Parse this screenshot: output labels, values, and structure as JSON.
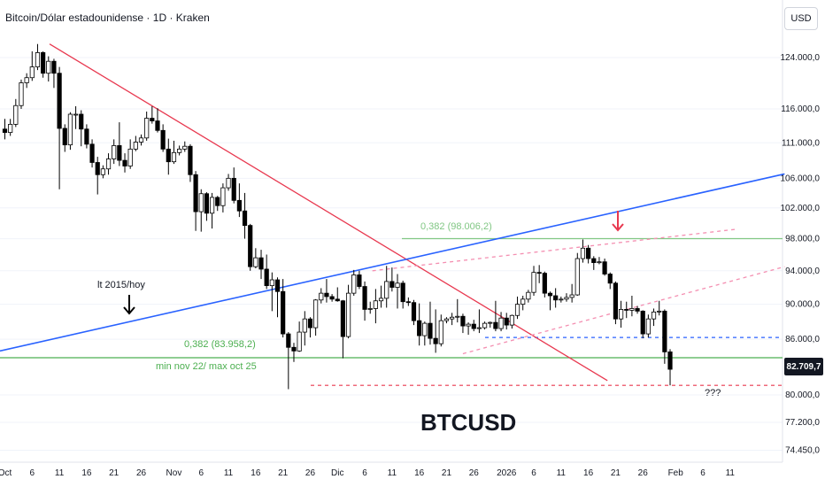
{
  "header": {
    "title": "Bitcoin/Dólar estadounidense · 1D · Kraken",
    "currency_button": "USD",
    "last_price": "82.709,7"
  },
  "colors": {
    "up": "#ffffff",
    "down": "#000000",
    "outline": "#000000",
    "red_line": "#e8384f",
    "blue_line": "#2962ff",
    "green_line": "#4caf50",
    "green_text": "#81c784",
    "pink_dash": "#f48fb1"
  },
  "annotations": {
    "fib_upper": "0,382 (98.006,2)",
    "fib_lower": "0,382 (83.958,2)",
    "support_label": "min nov 22/ max oct 25",
    "trend_label": "lt 2015/hoy",
    "question": "???",
    "symbol": "BTCUSD"
  },
  "chart_data": {
    "type": "candlestick",
    "title": "Bitcoin/Dólar estadounidense · 1D · Kraken",
    "y_axis": {
      "scale": "log",
      "range": [
        72500,
        131000
      ],
      "ticks": [
        "124.000,0",
        "116.000,0",
        "111.000,0",
        "106.000,0",
        "102.000,0",
        "98.000,0",
        "94.000,0",
        "90.000,0",
        "86.000,0",
        "82.709,7",
        "80.000,0",
        "77.200,0",
        "74.450,0"
      ],
      "tick_values": [
        124000,
        116000,
        111000,
        106000,
        102000,
        98000,
        94000,
        90000,
        86000,
        82709.7,
        80000,
        77200,
        74450
      ]
    },
    "x_axis": {
      "ticks": [
        "Oct",
        "6",
        "11",
        "16",
        "21",
        "26",
        "Nov",
        "6",
        "11",
        "16",
        "21",
        "26",
        "Dic",
        "6",
        "11",
        "16",
        "21",
        "26",
        "2026",
        "6",
        "11",
        "16",
        "21",
        "26",
        "Feb",
        "6",
        "11"
      ],
      "tick_bars": [
        0,
        5,
        10,
        15,
        20,
        25,
        31,
        36,
        41,
        46,
        51,
        56,
        61,
        66,
        71,
        76,
        81,
        86,
        92,
        97,
        102,
        107,
        112,
        117,
        123,
        128,
        133
      ]
    },
    "candles": [
      {
        "d": "2025-09-30",
        "o": 113000,
        "h": 114500,
        "l": 111500,
        "c": 112500
      },
      {
        "d": "2025-10-01",
        "o": 112500,
        "h": 114500,
        "l": 112000,
        "c": 113700
      },
      {
        "d": "2025-10-02",
        "o": 113700,
        "h": 117500,
        "l": 113300,
        "c": 116500
      },
      {
        "d": "2025-10-03",
        "o": 116500,
        "h": 120500,
        "l": 116000,
        "c": 120000
      },
      {
        "d": "2025-10-04",
        "o": 120000,
        "h": 121500,
        "l": 119200,
        "c": 120800
      },
      {
        "d": "2025-10-05",
        "o": 120800,
        "h": 125000,
        "l": 120300,
        "c": 122500
      },
      {
        "d": "2025-10-06",
        "o": 122500,
        "h": 126200,
        "l": 122000,
        "c": 124800
      },
      {
        "d": "2025-10-07",
        "o": 124800,
        "h": 125000,
        "l": 120800,
        "c": 121500
      },
      {
        "d": "2025-10-08",
        "o": 121500,
        "h": 124200,
        "l": 120200,
        "c": 123400
      },
      {
        "d": "2025-10-09",
        "o": 123400,
        "h": 123800,
        "l": 119200,
        "c": 121500
      },
      {
        "d": "2025-10-10",
        "o": 121500,
        "h": 122500,
        "l": 104500,
        "c": 113100
      },
      {
        "d": "2025-10-11",
        "o": 113100,
        "h": 113700,
        "l": 109700,
        "c": 110700
      },
      {
        "d": "2025-10-12",
        "o": 110700,
        "h": 115500,
        "l": 110000,
        "c": 115200
      },
      {
        "d": "2025-10-13",
        "o": 115200,
        "h": 116400,
        "l": 113000,
        "c": 115200
      },
      {
        "d": "2025-10-14",
        "o": 115200,
        "h": 115800,
        "l": 110500,
        "c": 113000
      },
      {
        "d": "2025-10-15",
        "o": 113000,
        "h": 113700,
        "l": 110200,
        "c": 110800
      },
      {
        "d": "2025-10-16",
        "o": 110800,
        "h": 111500,
        "l": 107500,
        "c": 108200
      },
      {
        "d": "2025-10-17",
        "o": 108200,
        "h": 109000,
        "l": 103800,
        "c": 106500
      },
      {
        "d": "2025-10-18",
        "o": 106500,
        "h": 107800,
        "l": 106000,
        "c": 107300
      },
      {
        "d": "2025-10-19",
        "o": 107300,
        "h": 109500,
        "l": 106500,
        "c": 108700
      },
      {
        "d": "2025-10-20",
        "o": 108700,
        "h": 111500,
        "l": 108000,
        "c": 110600
      },
      {
        "d": "2025-10-21",
        "o": 110600,
        "h": 114000,
        "l": 107700,
        "c": 108500
      },
      {
        "d": "2025-10-22",
        "o": 108500,
        "h": 109500,
        "l": 106800,
        "c": 107700
      },
      {
        "d": "2025-10-23",
        "o": 107700,
        "h": 111500,
        "l": 107300,
        "c": 110100
      },
      {
        "d": "2025-10-24",
        "o": 110100,
        "h": 112000,
        "l": 109800,
        "c": 111100
      },
      {
        "d": "2025-10-25",
        "o": 111100,
        "h": 112200,
        "l": 110600,
        "c": 111700
      },
      {
        "d": "2025-10-26",
        "o": 111700,
        "h": 115600,
        "l": 111300,
        "c": 114600
      },
      {
        "d": "2025-10-27",
        "o": 114600,
        "h": 116400,
        "l": 113800,
        "c": 114200
      },
      {
        "d": "2025-10-28",
        "o": 114200,
        "h": 116100,
        "l": 112500,
        "c": 112800
      },
      {
        "d": "2025-10-29",
        "o": 112800,
        "h": 113700,
        "l": 109700,
        "c": 110100
      },
      {
        "d": "2025-10-30",
        "o": 110100,
        "h": 111600,
        "l": 106500,
        "c": 108300
      },
      {
        "d": "2025-10-31",
        "o": 108300,
        "h": 111300,
        "l": 108000,
        "c": 109600
      },
      {
        "d": "2025-11-01",
        "o": 109600,
        "h": 110600,
        "l": 109200,
        "c": 110100
      },
      {
        "d": "2025-11-02",
        "o": 110100,
        "h": 111200,
        "l": 109700,
        "c": 110500
      },
      {
        "d": "2025-11-03",
        "o": 110500,
        "h": 110800,
        "l": 105500,
        "c": 106500
      },
      {
        "d": "2025-11-04",
        "o": 106500,
        "h": 107000,
        "l": 99000,
        "c": 101500
      },
      {
        "d": "2025-11-05",
        "o": 101500,
        "h": 104500,
        "l": 98900,
        "c": 103900
      },
      {
        "d": "2025-11-06",
        "o": 103900,
        "h": 104100,
        "l": 100300,
        "c": 101300
      },
      {
        "d": "2025-11-07",
        "o": 101300,
        "h": 104000,
        "l": 99300,
        "c": 103400
      },
      {
        "d": "2025-11-08",
        "o": 103400,
        "h": 103600,
        "l": 101600,
        "c": 102300
      },
      {
        "d": "2025-11-09",
        "o": 102300,
        "h": 105300,
        "l": 101400,
        "c": 104700
      },
      {
        "d": "2025-11-10",
        "o": 104700,
        "h": 106600,
        "l": 104300,
        "c": 106000
      },
      {
        "d": "2025-11-11",
        "o": 106000,
        "h": 107500,
        "l": 102600,
        "c": 103000
      },
      {
        "d": "2025-11-12",
        "o": 103000,
        "h": 105300,
        "l": 100800,
        "c": 101600
      },
      {
        "d": "2025-11-13",
        "o": 101600,
        "h": 104000,
        "l": 98000,
        "c": 99700
      },
      {
        "d": "2025-11-14",
        "o": 99700,
        "h": 99900,
        "l": 94000,
        "c": 94500
      },
      {
        "d": "2025-11-15",
        "o": 94500,
        "h": 96800,
        "l": 94300,
        "c": 95600
      },
      {
        "d": "2025-11-16",
        "o": 95600,
        "h": 96600,
        "l": 93000,
        "c": 94200
      },
      {
        "d": "2025-11-17",
        "o": 94200,
        "h": 96000,
        "l": 91800,
        "c": 92200
      },
      {
        "d": "2025-11-18",
        "o": 92200,
        "h": 93800,
        "l": 89200,
        "c": 92900
      },
      {
        "d": "2025-11-19",
        "o": 92900,
        "h": 93200,
        "l": 88500,
        "c": 91500
      },
      {
        "d": "2025-11-20",
        "o": 91500,
        "h": 93000,
        "l": 86200,
        "c": 86600
      },
      {
        "d": "2025-11-21",
        "o": 86600,
        "h": 86800,
        "l": 80600,
        "c": 85100
      },
      {
        "d": "2025-11-22",
        "o": 85100,
        "h": 85600,
        "l": 83500,
        "c": 84700
      },
      {
        "d": "2025-11-23",
        "o": 84700,
        "h": 88000,
        "l": 84600,
        "c": 86800
      },
      {
        "d": "2025-11-24",
        "o": 86800,
        "h": 89200,
        "l": 85300,
        "c": 88300
      },
      {
        "d": "2025-11-25",
        "o": 88300,
        "h": 88500,
        "l": 86200,
        "c": 87300
      },
      {
        "d": "2025-11-26",
        "o": 87300,
        "h": 90600,
        "l": 86400,
        "c": 90500
      },
      {
        "d": "2025-11-27",
        "o": 90500,
        "h": 91900,
        "l": 90100,
        "c": 91300
      },
      {
        "d": "2025-11-28",
        "o": 91300,
        "h": 93000,
        "l": 90200,
        "c": 90900
      },
      {
        "d": "2025-11-29",
        "o": 90900,
        "h": 91200,
        "l": 90300,
        "c": 90600
      },
      {
        "d": "2025-11-30",
        "o": 90600,
        "h": 92000,
        "l": 90300,
        "c": 90400
      },
      {
        "d": "2025-12-01",
        "o": 90400,
        "h": 90500,
        "l": 83900,
        "c": 86300
      },
      {
        "d": "2025-12-02",
        "o": 86300,
        "h": 92300,
        "l": 86100,
        "c": 91300
      },
      {
        "d": "2025-12-03",
        "o": 91300,
        "h": 94100,
        "l": 91000,
        "c": 93500
      },
      {
        "d": "2025-12-04",
        "o": 93500,
        "h": 94000,
        "l": 91800,
        "c": 92100
      },
      {
        "d": "2025-12-05",
        "o": 92100,
        "h": 92700,
        "l": 88100,
        "c": 89400
      },
      {
        "d": "2025-12-06",
        "o": 89400,
        "h": 90300,
        "l": 88900,
        "c": 89500
      },
      {
        "d": "2025-12-07",
        "o": 89500,
        "h": 91800,
        "l": 87800,
        "c": 90400
      },
      {
        "d": "2025-12-08",
        "o": 90400,
        "h": 92200,
        "l": 89600,
        "c": 90700
      },
      {
        "d": "2025-12-09",
        "o": 90700,
        "h": 94600,
        "l": 89600,
        "c": 92700
      },
      {
        "d": "2025-12-10",
        "o": 92700,
        "h": 94400,
        "l": 91500,
        "c": 92000
      },
      {
        "d": "2025-12-11",
        "o": 92000,
        "h": 93600,
        "l": 89500,
        "c": 92500
      },
      {
        "d": "2025-12-12",
        "o": 92500,
        "h": 92800,
        "l": 89500,
        "c": 90300
      },
      {
        "d": "2025-12-13",
        "o": 90300,
        "h": 90800,
        "l": 89800,
        "c": 90200
      },
      {
        "d": "2025-12-14",
        "o": 90200,
        "h": 90500,
        "l": 87600,
        "c": 88100
      },
      {
        "d": "2025-12-15",
        "o": 88100,
        "h": 90100,
        "l": 85300,
        "c": 86400
      },
      {
        "d": "2025-12-16",
        "o": 86400,
        "h": 88000,
        "l": 85300,
        "c": 87800
      },
      {
        "d": "2025-12-17",
        "o": 87800,
        "h": 90300,
        "l": 85400,
        "c": 86100
      },
      {
        "d": "2025-12-18",
        "o": 86100,
        "h": 89400,
        "l": 84500,
        "c": 85500
      },
      {
        "d": "2025-12-19",
        "o": 85500,
        "h": 88800,
        "l": 85200,
        "c": 88100
      },
      {
        "d": "2025-12-20",
        "o": 88100,
        "h": 88500,
        "l": 87800,
        "c": 88300
      },
      {
        "d": "2025-12-21",
        "o": 88300,
        "h": 89000,
        "l": 87600,
        "c": 88500
      },
      {
        "d": "2025-12-22",
        "o": 88500,
        "h": 90600,
        "l": 87900,
        "c": 88600
      },
      {
        "d": "2025-12-23",
        "o": 88600,
        "h": 88900,
        "l": 86700,
        "c": 87500
      },
      {
        "d": "2025-12-24",
        "o": 87500,
        "h": 87900,
        "l": 86500,
        "c": 87700
      },
      {
        "d": "2025-12-25",
        "o": 87700,
        "h": 88200,
        "l": 86900,
        "c": 87200
      },
      {
        "d": "2025-12-26",
        "o": 87200,
        "h": 89400,
        "l": 86700,
        "c": 87300
      },
      {
        "d": "2025-12-27",
        "o": 87300,
        "h": 88000,
        "l": 87100,
        "c": 87800
      },
      {
        "d": "2025-12-28",
        "o": 87800,
        "h": 88000,
        "l": 87300,
        "c": 87900
      },
      {
        "d": "2025-12-29",
        "o": 87900,
        "h": 90400,
        "l": 86900,
        "c": 87200
      },
      {
        "d": "2025-12-30",
        "o": 87200,
        "h": 89100,
        "l": 86900,
        "c": 88400
      },
      {
        "d": "2025-12-31",
        "o": 88400,
        "h": 89000,
        "l": 87100,
        "c": 87600
      },
      {
        "d": "2026-01-01",
        "o": 87600,
        "h": 88800,
        "l": 87200,
        "c": 88700
      },
      {
        "d": "2026-01-02",
        "o": 88700,
        "h": 90900,
        "l": 88300,
        "c": 90000
      },
      {
        "d": "2026-01-03",
        "o": 90000,
        "h": 91000,
        "l": 89300,
        "c": 90600
      },
      {
        "d": "2026-01-04",
        "o": 90600,
        "h": 91700,
        "l": 90200,
        "c": 91400
      },
      {
        "d": "2026-01-05",
        "o": 91400,
        "h": 94600,
        "l": 91000,
        "c": 93800
      },
      {
        "d": "2026-01-06",
        "o": 93800,
        "h": 94700,
        "l": 92500,
        "c": 93700
      },
      {
        "d": "2026-01-07",
        "o": 93700,
        "h": 93900,
        "l": 90800,
        "c": 91300
      },
      {
        "d": "2026-01-08",
        "o": 91300,
        "h": 91500,
        "l": 89300,
        "c": 91000
      },
      {
        "d": "2026-01-09",
        "o": 91000,
        "h": 91900,
        "l": 89600,
        "c": 90500
      },
      {
        "d": "2026-01-10",
        "o": 90500,
        "h": 90900,
        "l": 90200,
        "c": 90600
      },
      {
        "d": "2026-01-11",
        "o": 90600,
        "h": 91300,
        "l": 90300,
        "c": 90800
      },
      {
        "d": "2026-01-12",
        "o": 90800,
        "h": 92400,
        "l": 90200,
        "c": 91100
      },
      {
        "d": "2026-01-13",
        "o": 91100,
        "h": 96200,
        "l": 91000,
        "c": 95500
      },
      {
        "d": "2026-01-14",
        "o": 95500,
        "h": 97900,
        "l": 95000,
        "c": 96800
      },
      {
        "d": "2026-01-15",
        "o": 96800,
        "h": 97200,
        "l": 94900,
        "c": 95500
      },
      {
        "d": "2026-01-16",
        "o": 95500,
        "h": 95800,
        "l": 94100,
        "c": 95000
      },
      {
        "d": "2026-01-17",
        "o": 95000,
        "h": 95700,
        "l": 94800,
        "c": 95100
      },
      {
        "d": "2026-01-18",
        "o": 95100,
        "h": 95500,
        "l": 93400,
        "c": 93600
      },
      {
        "d": "2026-01-19",
        "o": 93600,
        "h": 93800,
        "l": 91800,
        "c": 92500
      },
      {
        "d": "2026-01-20",
        "o": 92500,
        "h": 92700,
        "l": 87700,
        "c": 88300
      },
      {
        "d": "2026-01-21",
        "o": 88300,
        "h": 90400,
        "l": 87300,
        "c": 89400
      },
      {
        "d": "2026-01-22",
        "o": 89400,
        "h": 90300,
        "l": 88400,
        "c": 89300
      },
      {
        "d": "2026-01-23",
        "o": 89300,
        "h": 91000,
        "l": 88600,
        "c": 89500
      },
      {
        "d": "2026-01-24",
        "o": 89500,
        "h": 89800,
        "l": 88900,
        "c": 89200
      },
      {
        "d": "2026-01-25",
        "o": 89200,
        "h": 89300,
        "l": 86100,
        "c": 86600
      },
      {
        "d": "2026-01-26",
        "o": 86600,
        "h": 88800,
        "l": 86200,
        "c": 88300
      },
      {
        "d": "2026-01-27",
        "o": 88300,
        "h": 89500,
        "l": 87500,
        "c": 89100
      },
      {
        "d": "2026-01-28",
        "o": 89100,
        "h": 90400,
        "l": 88700,
        "c": 89200
      },
      {
        "d": "2026-01-29",
        "o": 89200,
        "h": 89400,
        "l": 83300,
        "c": 84600
      },
      {
        "d": "2026-01-30",
        "o": 84600,
        "h": 84900,
        "l": 81000,
        "c": 82709.7
      }
    ],
    "levels": [
      {
        "name": "fib_upper",
        "value": 98006.2
      },
      {
        "name": "fib_lower",
        "value": 83958.2
      },
      {
        "name": "resistance_dashed",
        "value": 86200
      },
      {
        "name": "low_dashed",
        "value": 81000
      }
    ]
  }
}
